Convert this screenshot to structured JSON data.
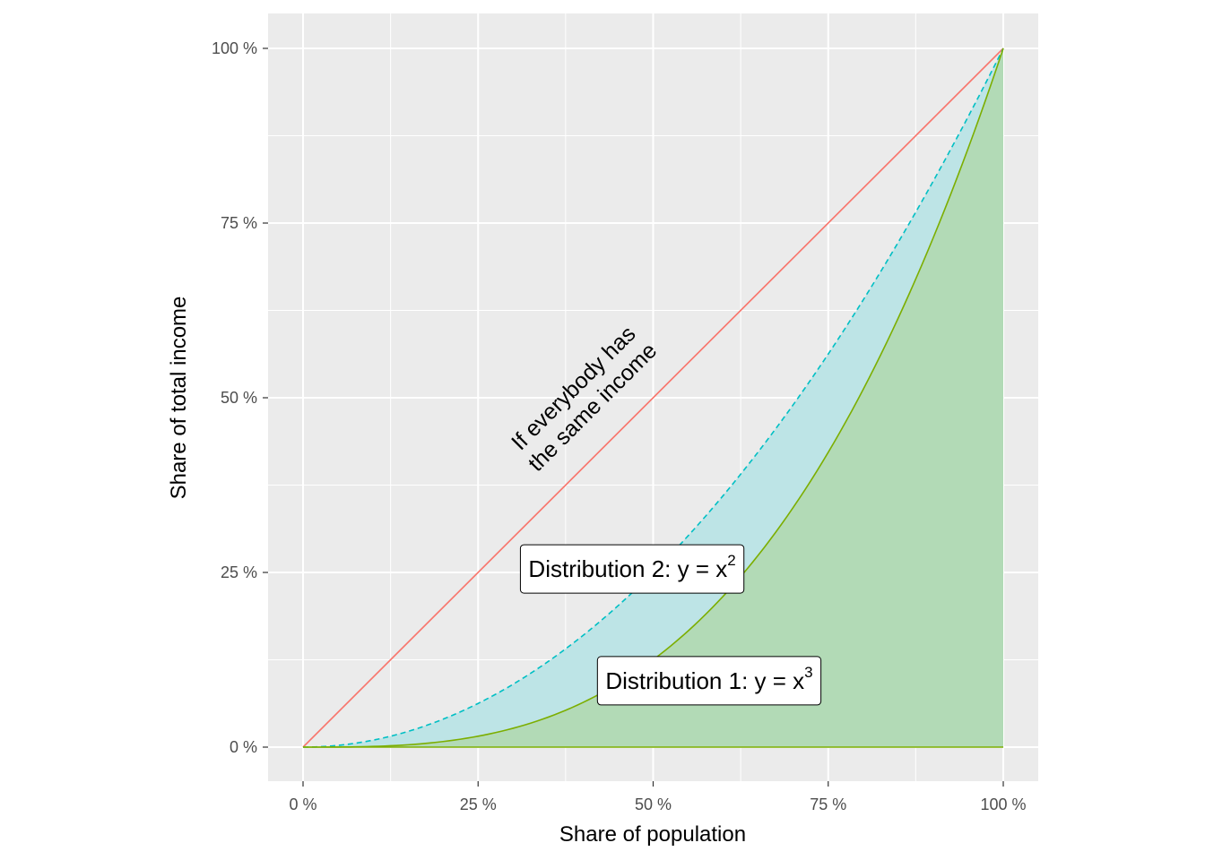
{
  "chart_data": {
    "type": "line",
    "xlabel": "Share of population",
    "ylabel": "Share of total income",
    "xlim": [
      -0.05,
      1.05
    ],
    "ylim": [
      -0.05,
      1.05
    ],
    "x_ticks": [
      {
        "value": 0,
        "label": "0 %"
      },
      {
        "value": 0.25,
        "label": "25 %"
      },
      {
        "value": 0.5,
        "label": "50 %"
      },
      {
        "value": 0.75,
        "label": "75 %"
      },
      {
        "value": 1,
        "label": "100 %"
      }
    ],
    "y_ticks": [
      {
        "value": 0,
        "label": "0 %"
      },
      {
        "value": 0.25,
        "label": "25 %"
      },
      {
        "value": 0.5,
        "label": "50 %"
      },
      {
        "value": 0.75,
        "label": "75 %"
      },
      {
        "value": 1,
        "label": "100 %"
      }
    ],
    "grid": true,
    "series": [
      {
        "exponent": 1,
        "color": "#F8766D",
        "line": "solid",
        "fill": null
      },
      {
        "exponent": 2,
        "color": "#00BFC4",
        "line": "dashed",
        "fill": "#BDE4E6"
      },
      {
        "exponent": 3,
        "color": "#7CAE00",
        "line": "solid",
        "fill": "#B2DAB6"
      }
    ],
    "annotations": [
      {
        "text_lines": [
          "If everybody has",
          "the same income"
        ],
        "x": 0.4,
        "y": 0.5,
        "angle": 45
      },
      {
        "prefix": "Distribution 2: y = x",
        "superscript": "2",
        "x": 0.47,
        "y": 0.255
      },
      {
        "prefix": "Distribution 1: y = x",
        "superscript": "3",
        "x": 0.58,
        "y": 0.095
      }
    ]
  }
}
